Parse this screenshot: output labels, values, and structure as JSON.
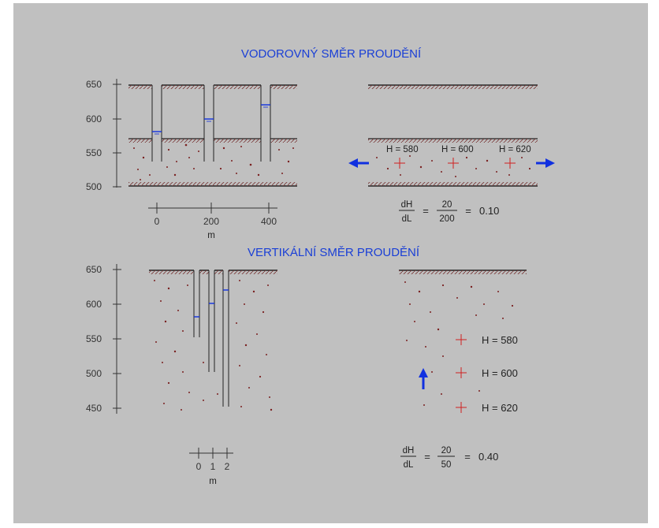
{
  "colors": {
    "panel_bg": "#c0c0c0",
    "title": "#1a3fd6",
    "arrow": "#1030e0",
    "plus": "#d02020",
    "soil": "#7a2020"
  },
  "top": {
    "title": "VODOROVNÝ SMĚR PROUDĚNÍ",
    "axis_ticks": [
      "650",
      "600",
      "550",
      "500"
    ],
    "scale_ticks": [
      "0",
      "200",
      "400"
    ],
    "scale_unit": "m",
    "heads": [
      "H = 580",
      "H = 600",
      "H = 620"
    ],
    "formula": {
      "lhs_num": "dH",
      "lhs_den": "dL",
      "eq1": "=",
      "rhs_num": "20",
      "rhs_den": "200",
      "eq2": "=",
      "result": "0.10"
    }
  },
  "bottom": {
    "title": "VERTIKÁLNÍ SMĚR PROUDĚNÍ",
    "axis_ticks": [
      "650",
      "600",
      "550",
      "500",
      "450"
    ],
    "scale_ticks": [
      "0",
      "1",
      "2"
    ],
    "scale_unit": "m",
    "heads": [
      "H = 580",
      "H = 600",
      "H = 620"
    ],
    "formula": {
      "lhs_num": "dH",
      "lhs_den": "dL",
      "eq1": "=",
      "rhs_num": "20",
      "rhs_den": "50",
      "eq2": "=",
      "result": "0.40"
    }
  }
}
